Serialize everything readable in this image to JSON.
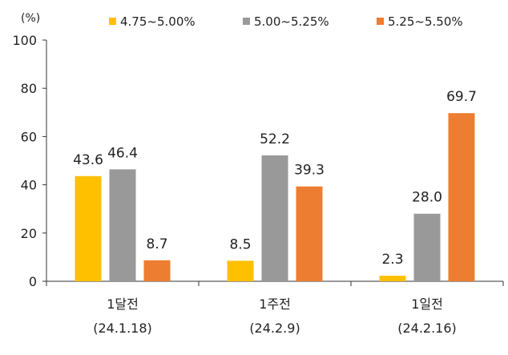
{
  "chart_data": {
    "type": "bar",
    "unit": "(%)",
    "ylim": [
      0,
      100
    ],
    "yticks": [
      0,
      20,
      40,
      60,
      80,
      100
    ],
    "grid": false,
    "legend_position": "top",
    "categories": [
      [
        "1달전",
        "(24.1.18)"
      ],
      [
        "1주전",
        "(24.2.9)"
      ],
      [
        "1일전",
        "(24.2.16)"
      ]
    ],
    "series": [
      {
        "name": "4.75~5.00%",
        "color": "#FFC000",
        "values": [
          43.6,
          8.5,
          2.3
        ]
      },
      {
        "name": "5.00~5.25%",
        "color": "#999999",
        "values": [
          46.4,
          52.2,
          28.0
        ]
      },
      {
        "name": "5.25~5.50%",
        "color": "#ED7D31",
        "values": [
          8.7,
          39.3,
          69.7
        ]
      }
    ]
  }
}
